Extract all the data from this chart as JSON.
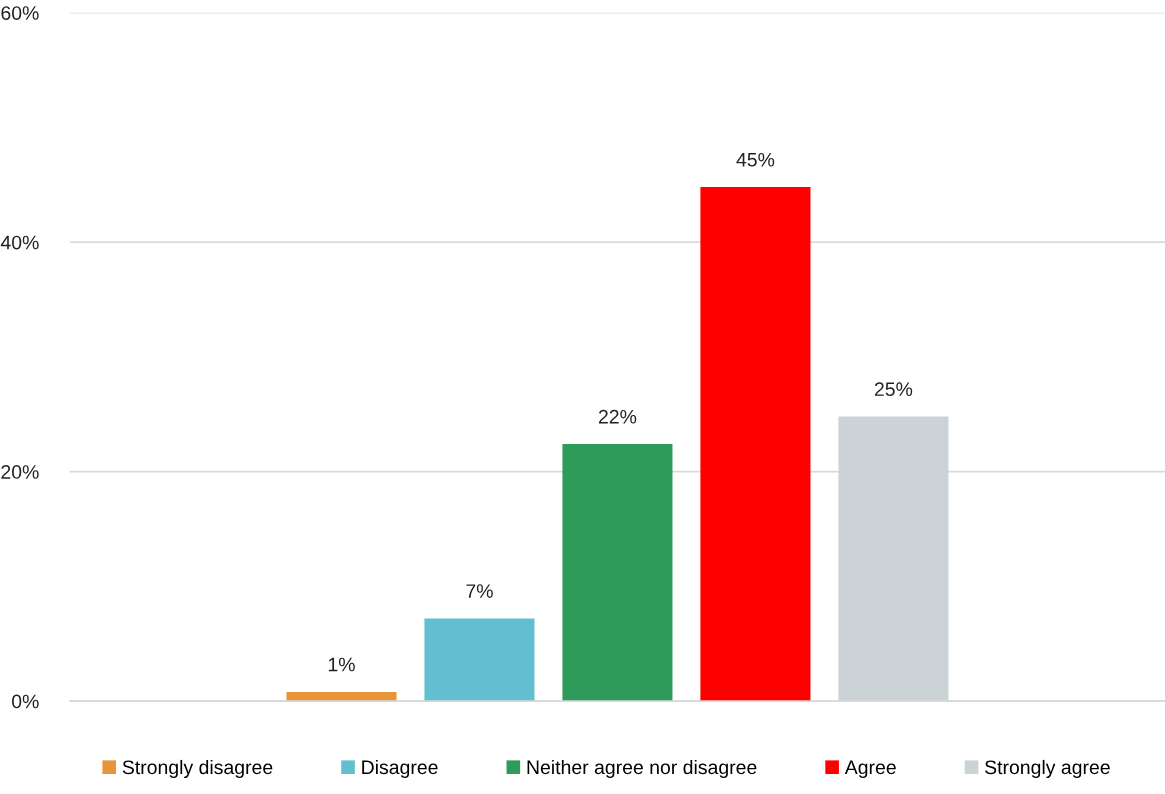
{
  "chart_data": {
    "type": "bar",
    "categories": [
      null
    ],
    "series": [
      {
        "name": "Strongly disagree",
        "color": "#e8943a",
        "values": [
          0.8
        ],
        "value_labels": [
          "1%"
        ]
      },
      {
        "name": "Disagree",
        "color": "#62bfd0",
        "values": [
          7.2
        ],
        "value_labels": [
          "7%"
        ]
      },
      {
        "name": "Neither agree nor disagree",
        "color": "#2e9b5a",
        "values": [
          22.4
        ],
        "value_labels": [
          "22%"
        ]
      },
      {
        "name": "Agree",
        "color": "#ff0000",
        "values": [
          44.8
        ],
        "value_labels": [
          "45%"
        ]
      },
      {
        "name": "Strongly agree",
        "color": "#cbd3d6",
        "values": [
          24.8
        ],
        "value_labels": [
          "25%"
        ]
      }
    ],
    "ylim": [
      0,
      60
    ],
    "yticks": [
      {
        "value": 0,
        "label": "0%"
      },
      {
        "value": 20,
        "label": "20%"
      },
      {
        "value": 40,
        "label": "40%"
      },
      {
        "value": 60,
        "label": "60%"
      }
    ],
    "grid": "y",
    "legend": "bottom"
  }
}
